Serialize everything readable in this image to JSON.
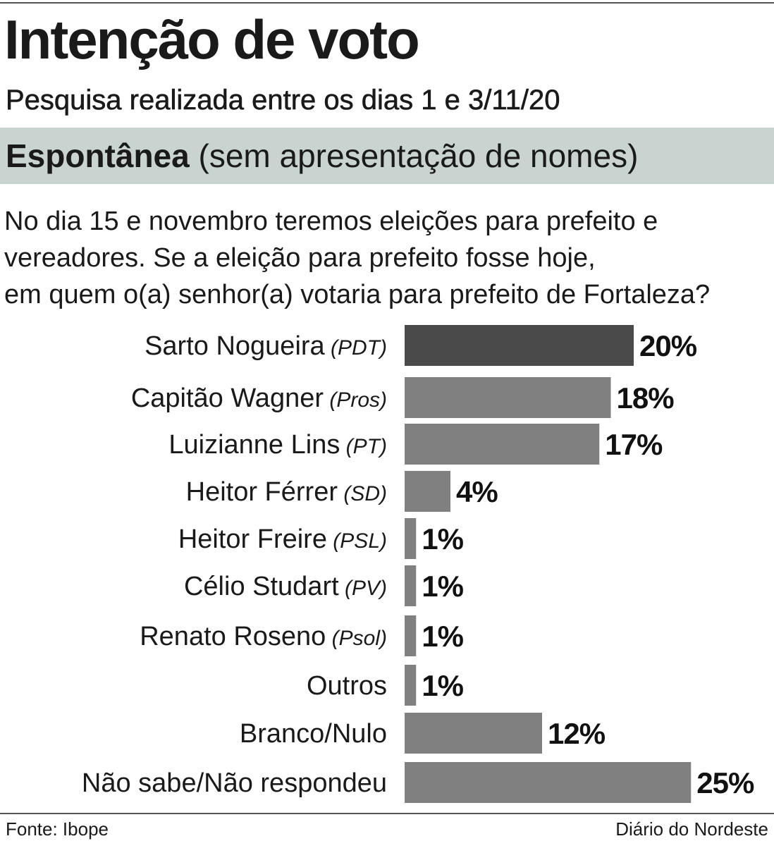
{
  "title": "Intenção de voto",
  "subtitle": "Pesquisa realizada entre os dias 1 e 3/11/20",
  "section": {
    "strong": "Espontânea",
    "light": " (sem apresentação de nomes)"
  },
  "question": [
    "No dia 15 e novembro teremos eleições para prefeito e",
    "vereadores. Se a eleição para prefeito fosse hoje,",
    "em quem o(a) senhor(a) votaria para prefeito de Fortaleza?"
  ],
  "footer": {
    "source": "Fonte: Ibope",
    "credit": "Diário do Nordeste"
  },
  "colors": {
    "highlight": "#4a4a4a",
    "bar": "#808080",
    "band": "#c9d4d0"
  },
  "chart_data": {
    "type": "bar",
    "orientation": "horizontal",
    "categories": [
      "Sarto Nogueira",
      "Capitão Wagner",
      "Luizianne Lins",
      "Heitor Férrer",
      "Heitor Freire",
      "Célio Studart",
      "Renato Roseno",
      "Outros",
      "Branco/Nulo",
      "Não sabe/Não respondeu"
    ],
    "parties": [
      "(PDT)",
      "(Pros)",
      "(PT)",
      "(SD)",
      "(PSL)",
      "(PV)",
      "(Psol)",
      "",
      "",
      ""
    ],
    "values": [
      20,
      18,
      17,
      4,
      1,
      1,
      1,
      1,
      12,
      25
    ],
    "value_labels": [
      "20%",
      "18%",
      "17%",
      "4%",
      "1%",
      "1%",
      "1%",
      "1%",
      "12%",
      "25%"
    ],
    "highlight_index": 0,
    "unit": "%",
    "grid": false
  }
}
